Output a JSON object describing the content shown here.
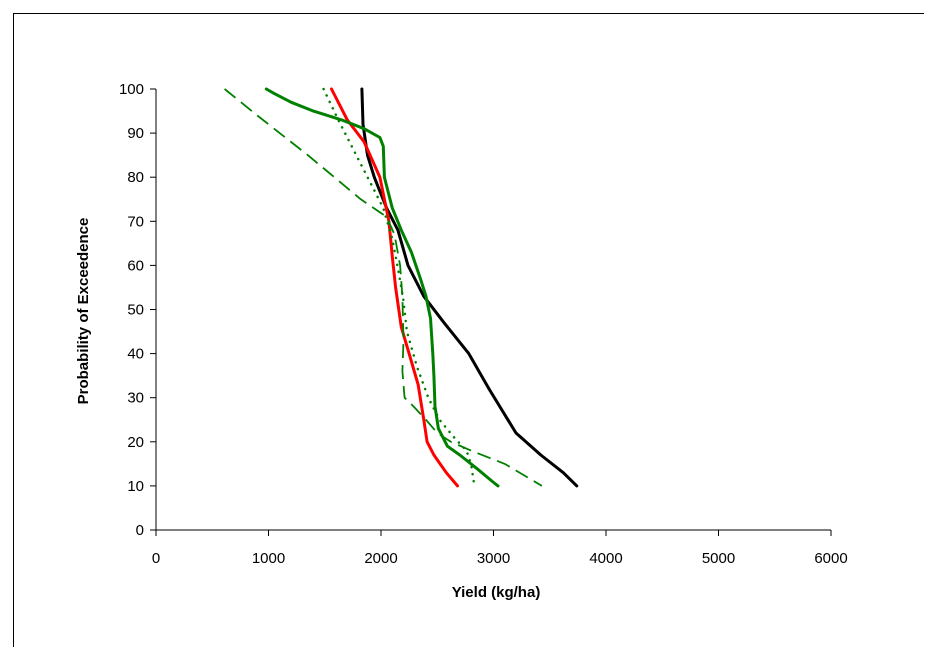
{
  "chart_data": {
    "type": "line",
    "title": "",
    "xlabel": "Yield (kg/ha)",
    "ylabel": "Probability of Exceedence",
    "xlim": [
      0,
      6000
    ],
    "ylim": [
      0,
      100
    ],
    "xticks": [
      "0",
      "1000",
      "2000",
      "3000",
      "4000",
      "5000",
      "6000"
    ],
    "yticks": [
      "0",
      "10",
      "20",
      "30",
      "40",
      "50",
      "60",
      "70",
      "80",
      "90",
      "100"
    ],
    "grid": false,
    "legend": "none",
    "series": [
      {
        "color": "#000000",
        "style": "solid",
        "points": [
          [
            1830,
            100
          ],
          [
            1840,
            92
          ],
          [
            1880,
            85
          ],
          [
            1940,
            80
          ],
          [
            2050,
            73
          ],
          [
            2150,
            68
          ],
          [
            2240,
            60
          ],
          [
            2380,
            53
          ],
          [
            2560,
            47
          ],
          [
            2780,
            40
          ],
          [
            2960,
            32
          ],
          [
            3200,
            22
          ],
          [
            3420,
            17
          ],
          [
            3620,
            13
          ],
          [
            3740,
            10
          ]
        ]
      },
      {
        "color": "#ff0000",
        "style": "solid",
        "points": [
          [
            1560,
            100
          ],
          [
            1700,
            93
          ],
          [
            1850,
            88
          ],
          [
            1990,
            80
          ],
          [
            2030,
            75
          ],
          [
            2070,
            70
          ],
          [
            2100,
            62
          ],
          [
            2130,
            55
          ],
          [
            2180,
            46
          ],
          [
            2250,
            40
          ],
          [
            2330,
            33
          ],
          [
            2380,
            25
          ],
          [
            2410,
            20
          ],
          [
            2470,
            17
          ],
          [
            2580,
            13
          ],
          [
            2680,
            10
          ]
        ]
      },
      {
        "color": "#008000",
        "style": "solid",
        "points": [
          [
            980,
            100
          ],
          [
            1050,
            99
          ],
          [
            1200,
            97
          ],
          [
            1400,
            95
          ],
          [
            1650,
            93
          ],
          [
            1850,
            91
          ],
          [
            1990,
            89
          ],
          [
            2020,
            87
          ],
          [
            2030,
            80
          ],
          [
            2100,
            73
          ],
          [
            2180,
            68
          ],
          [
            2270,
            63
          ],
          [
            2350,
            57
          ],
          [
            2400,
            53
          ],
          [
            2440,
            48
          ],
          [
            2460,
            40
          ],
          [
            2470,
            35
          ],
          [
            2480,
            28
          ],
          [
            2510,
            23
          ],
          [
            2590,
            19
          ],
          [
            2700,
            17
          ],
          [
            2850,
            14
          ],
          [
            2990,
            11
          ],
          [
            3040,
            10
          ]
        ]
      },
      {
        "color": "#008000",
        "style": "dashed",
        "points": [
          [
            610,
            100
          ],
          [
            900,
            94
          ],
          [
            1350,
            85
          ],
          [
            1820,
            75
          ],
          [
            2050,
            71
          ],
          [
            2120,
            67
          ],
          [
            2170,
            60
          ],
          [
            2190,
            53
          ],
          [
            2200,
            43
          ],
          [
            2190,
            36
          ],
          [
            2200,
            33
          ],
          [
            2210,
            30
          ],
          [
            2290,
            28
          ],
          [
            2400,
            25
          ],
          [
            2500,
            22
          ],
          [
            2620,
            20
          ],
          [
            2800,
            18
          ],
          [
            3100,
            15
          ],
          [
            3430,
            10
          ]
        ]
      },
      {
        "color": "#008000",
        "style": "dotted",
        "points": [
          [
            1490,
            100
          ],
          [
            1620,
            93
          ],
          [
            1800,
            84
          ],
          [
            1940,
            77
          ],
          [
            2020,
            73
          ],
          [
            2100,
            66
          ],
          [
            2160,
            58
          ],
          [
            2200,
            52
          ],
          [
            2230,
            45
          ],
          [
            2320,
            37
          ],
          [
            2420,
            30
          ],
          [
            2520,
            25
          ],
          [
            2650,
            21
          ],
          [
            2760,
            18
          ],
          [
            2800,
            15
          ],
          [
            2830,
            10
          ]
        ]
      }
    ]
  }
}
